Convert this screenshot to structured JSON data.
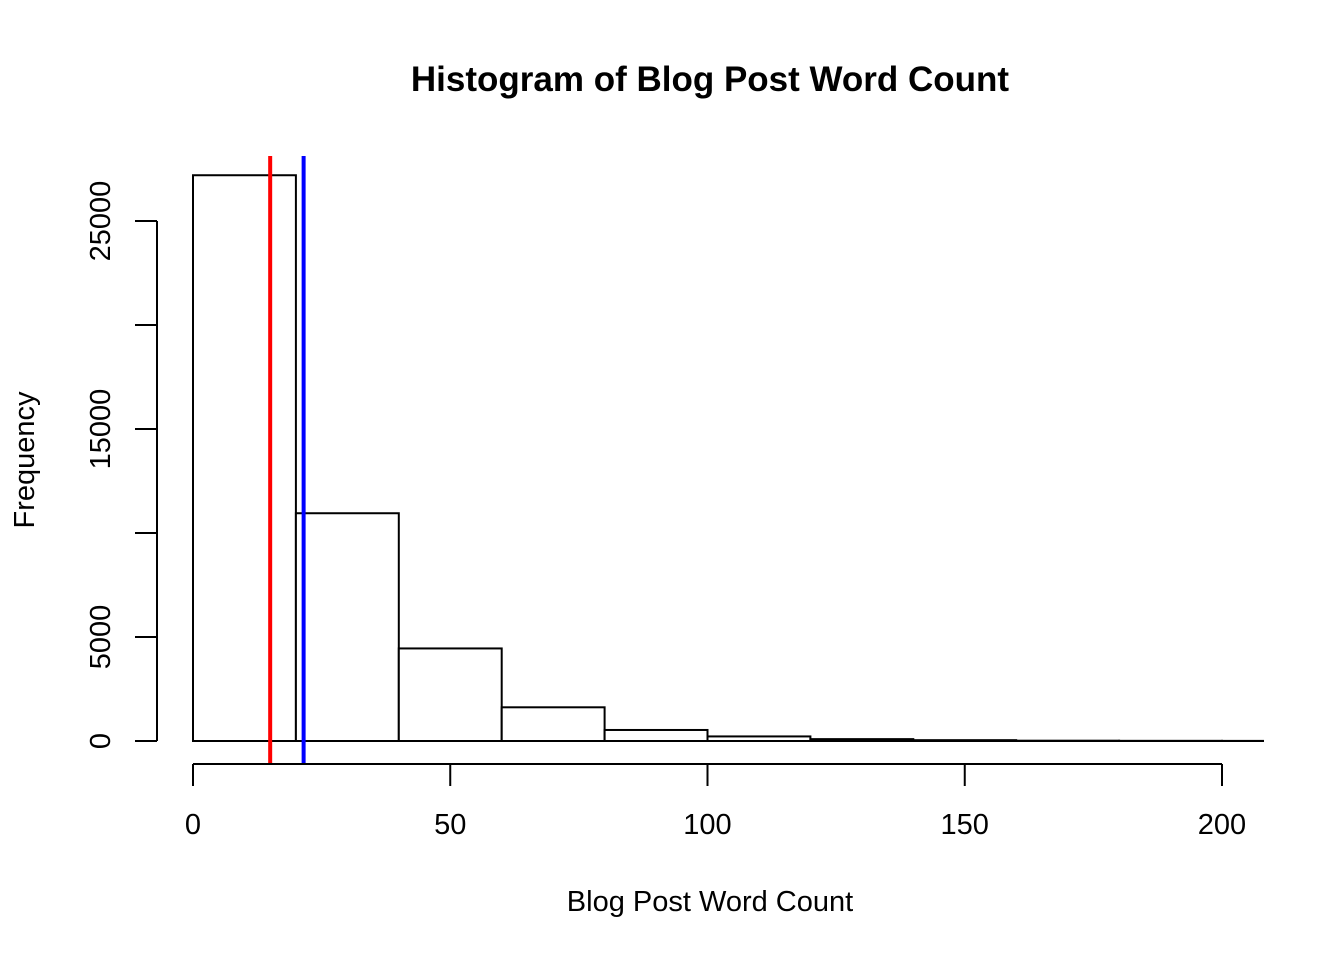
{
  "chart_data": {
    "type": "bar",
    "title": "Histogram of Blog Post Word Count",
    "xlabel": "Blog Post Word Count",
    "ylabel": "Frequency",
    "bins": [
      {
        "start": 0,
        "end": 20,
        "count": 27200
      },
      {
        "start": 20,
        "end": 40,
        "count": 10950
      },
      {
        "start": 40,
        "end": 60,
        "count": 4450
      },
      {
        "start": 60,
        "end": 80,
        "count": 1620
      },
      {
        "start": 80,
        "end": 100,
        "count": 530
      },
      {
        "start": 100,
        "end": 120,
        "count": 220
      },
      {
        "start": 120,
        "end": 140,
        "count": 90
      },
      {
        "start": 140,
        "end": 160,
        "count": 40
      },
      {
        "start": 160,
        "end": 180,
        "count": 15
      },
      {
        "start": 180,
        "end": 200,
        "count": 8
      },
      {
        "start": 200,
        "end": 220,
        "count": 5
      }
    ],
    "xlim": [
      0,
      200
    ],
    "ylim": [
      0,
      27200
    ],
    "x_ticks": [
      0,
      50,
      100,
      150,
      200
    ],
    "y_ticks": [
      0,
      5000,
      15000,
      25000
    ],
    "y_ticks_unlabeled": [
      10000,
      20000
    ],
    "reference_lines": [
      {
        "x": 15,
        "color": "#ff0000"
      },
      {
        "x": 21.5,
        "color": "#0000ff"
      }
    ],
    "grid": false
  }
}
